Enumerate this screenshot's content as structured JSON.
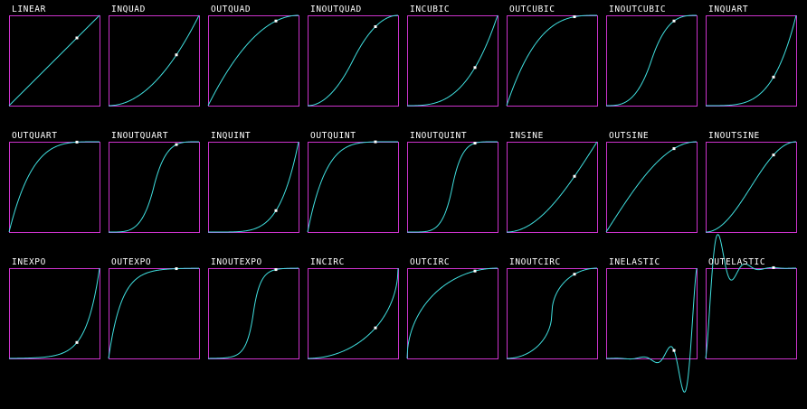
{
  "app": {
    "background": "#000000"
  },
  "colors": {
    "frame": "#cc33cc",
    "curve": "#40e0e0",
    "marker": "#ffffff",
    "label": "#ffffff"
  },
  "chart_data": {
    "type": "line",
    "grid": false,
    "columns": 8,
    "x_range": [
      0,
      1
    ],
    "y_range": [
      0,
      1
    ],
    "charts": [
      {
        "label": "LINEAR",
        "fn": "linear",
        "t": 0.75
      },
      {
        "label": "INQUAD",
        "fn": "inquad",
        "t": 0.75
      },
      {
        "label": "OUTQUAD",
        "fn": "outquad",
        "t": 0.75
      },
      {
        "label": "INOUTQUAD",
        "fn": "inoutquad",
        "t": 0.75
      },
      {
        "label": "INCUBIC",
        "fn": "incubic",
        "t": 0.75
      },
      {
        "label": "OUTCUBIC",
        "fn": "outcubic",
        "t": 0.75
      },
      {
        "label": "INOUTCUBIC",
        "fn": "inoutcubic",
        "t": 0.75
      },
      {
        "label": "INQUART",
        "fn": "inquart",
        "t": 0.75
      },
      {
        "label": "OUTQUART",
        "fn": "outquart",
        "t": 0.75
      },
      {
        "label": "INOUTQUART",
        "fn": "inoutquart",
        "t": 0.75
      },
      {
        "label": "INQUINT",
        "fn": "inquint",
        "t": 0.75
      },
      {
        "label": "OUTQUINT",
        "fn": "outquint",
        "t": 0.75
      },
      {
        "label": "INOUTQUINT",
        "fn": "inoutquint",
        "t": 0.75
      },
      {
        "label": "INSINE",
        "fn": "insine",
        "t": 0.75
      },
      {
        "label": "OUTSINE",
        "fn": "outsine",
        "t": 0.75
      },
      {
        "label": "INOUTSINE",
        "fn": "inoutsine",
        "t": 0.75
      },
      {
        "label": "INEXPO",
        "fn": "inexpo",
        "t": 0.75
      },
      {
        "label": "OUTEXPO",
        "fn": "outexpo",
        "t": 0.75
      },
      {
        "label": "INOUTEXPO",
        "fn": "inoutexpo",
        "t": 0.75
      },
      {
        "label": "INCIRC",
        "fn": "incirc",
        "t": 0.75
      },
      {
        "label": "OUTCIRC",
        "fn": "outcirc",
        "t": 0.75
      },
      {
        "label": "INOUTCIRC",
        "fn": "inoutcirc",
        "t": 0.75
      },
      {
        "label": "INELASTIC",
        "fn": "inelastic",
        "t": 0.75
      },
      {
        "label": "OUTELASTIC",
        "fn": "outelastic",
        "t": 0.75
      }
    ]
  }
}
